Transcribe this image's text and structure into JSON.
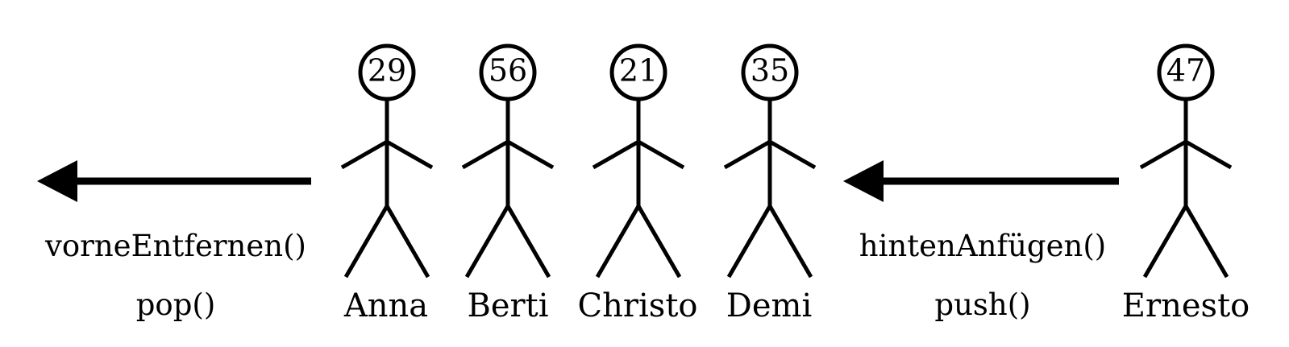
{
  "colors": {
    "ink": "#000000",
    "background": "#ffffff"
  },
  "queue": {
    "persons": [
      {
        "name": "Anna",
        "age": "29"
      },
      {
        "name": "Berti",
        "age": "56"
      },
      {
        "name": "Christo",
        "age": "21"
      },
      {
        "name": "Demi",
        "age": "35"
      }
    ]
  },
  "incoming": {
    "name": "Ernesto",
    "age": "47"
  },
  "operations": {
    "remove": {
      "label": "vorneEntfernen()",
      "alias": "pop()"
    },
    "append": {
      "label": "hintenAnfügen()",
      "alias": "push()"
    }
  }
}
